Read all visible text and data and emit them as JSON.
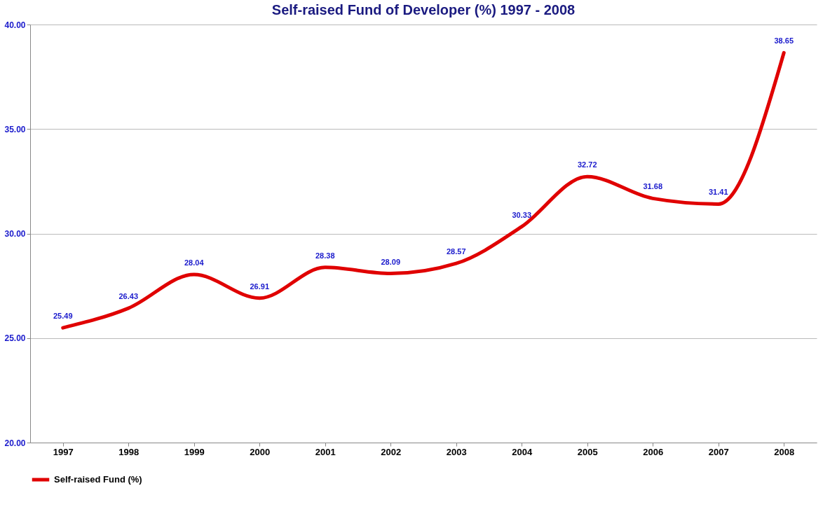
{
  "chart_data": {
    "type": "line",
    "title": "Self-raised Fund of Developer (%) 1997 - 2008",
    "categories": [
      "1997",
      "1998",
      "1999",
      "2000",
      "2001",
      "2002",
      "2003",
      "2004",
      "2005",
      "2006",
      "2007",
      "2008"
    ],
    "series": [
      {
        "name": "Self-raised Fund (%)",
        "color": "#e00000",
        "values": [
          25.49,
          26.43,
          28.04,
          26.91,
          28.38,
          28.09,
          28.57,
          30.33,
          32.72,
          31.68,
          31.41,
          38.65
        ]
      }
    ],
    "ylim": [
      20,
      40
    ],
    "yticks": [
      {
        "value": 20,
        "label": "20.00"
      },
      {
        "value": 25,
        "label": "25.00"
      },
      {
        "value": 30,
        "label": "30.00"
      },
      {
        "value": 35,
        "label": "35.00"
      },
      {
        "value": 40,
        "label": "40.00"
      }
    ],
    "grid": "y",
    "legend": "bottom",
    "data_labels": true,
    "marker": "none",
    "line_style": "solid"
  }
}
